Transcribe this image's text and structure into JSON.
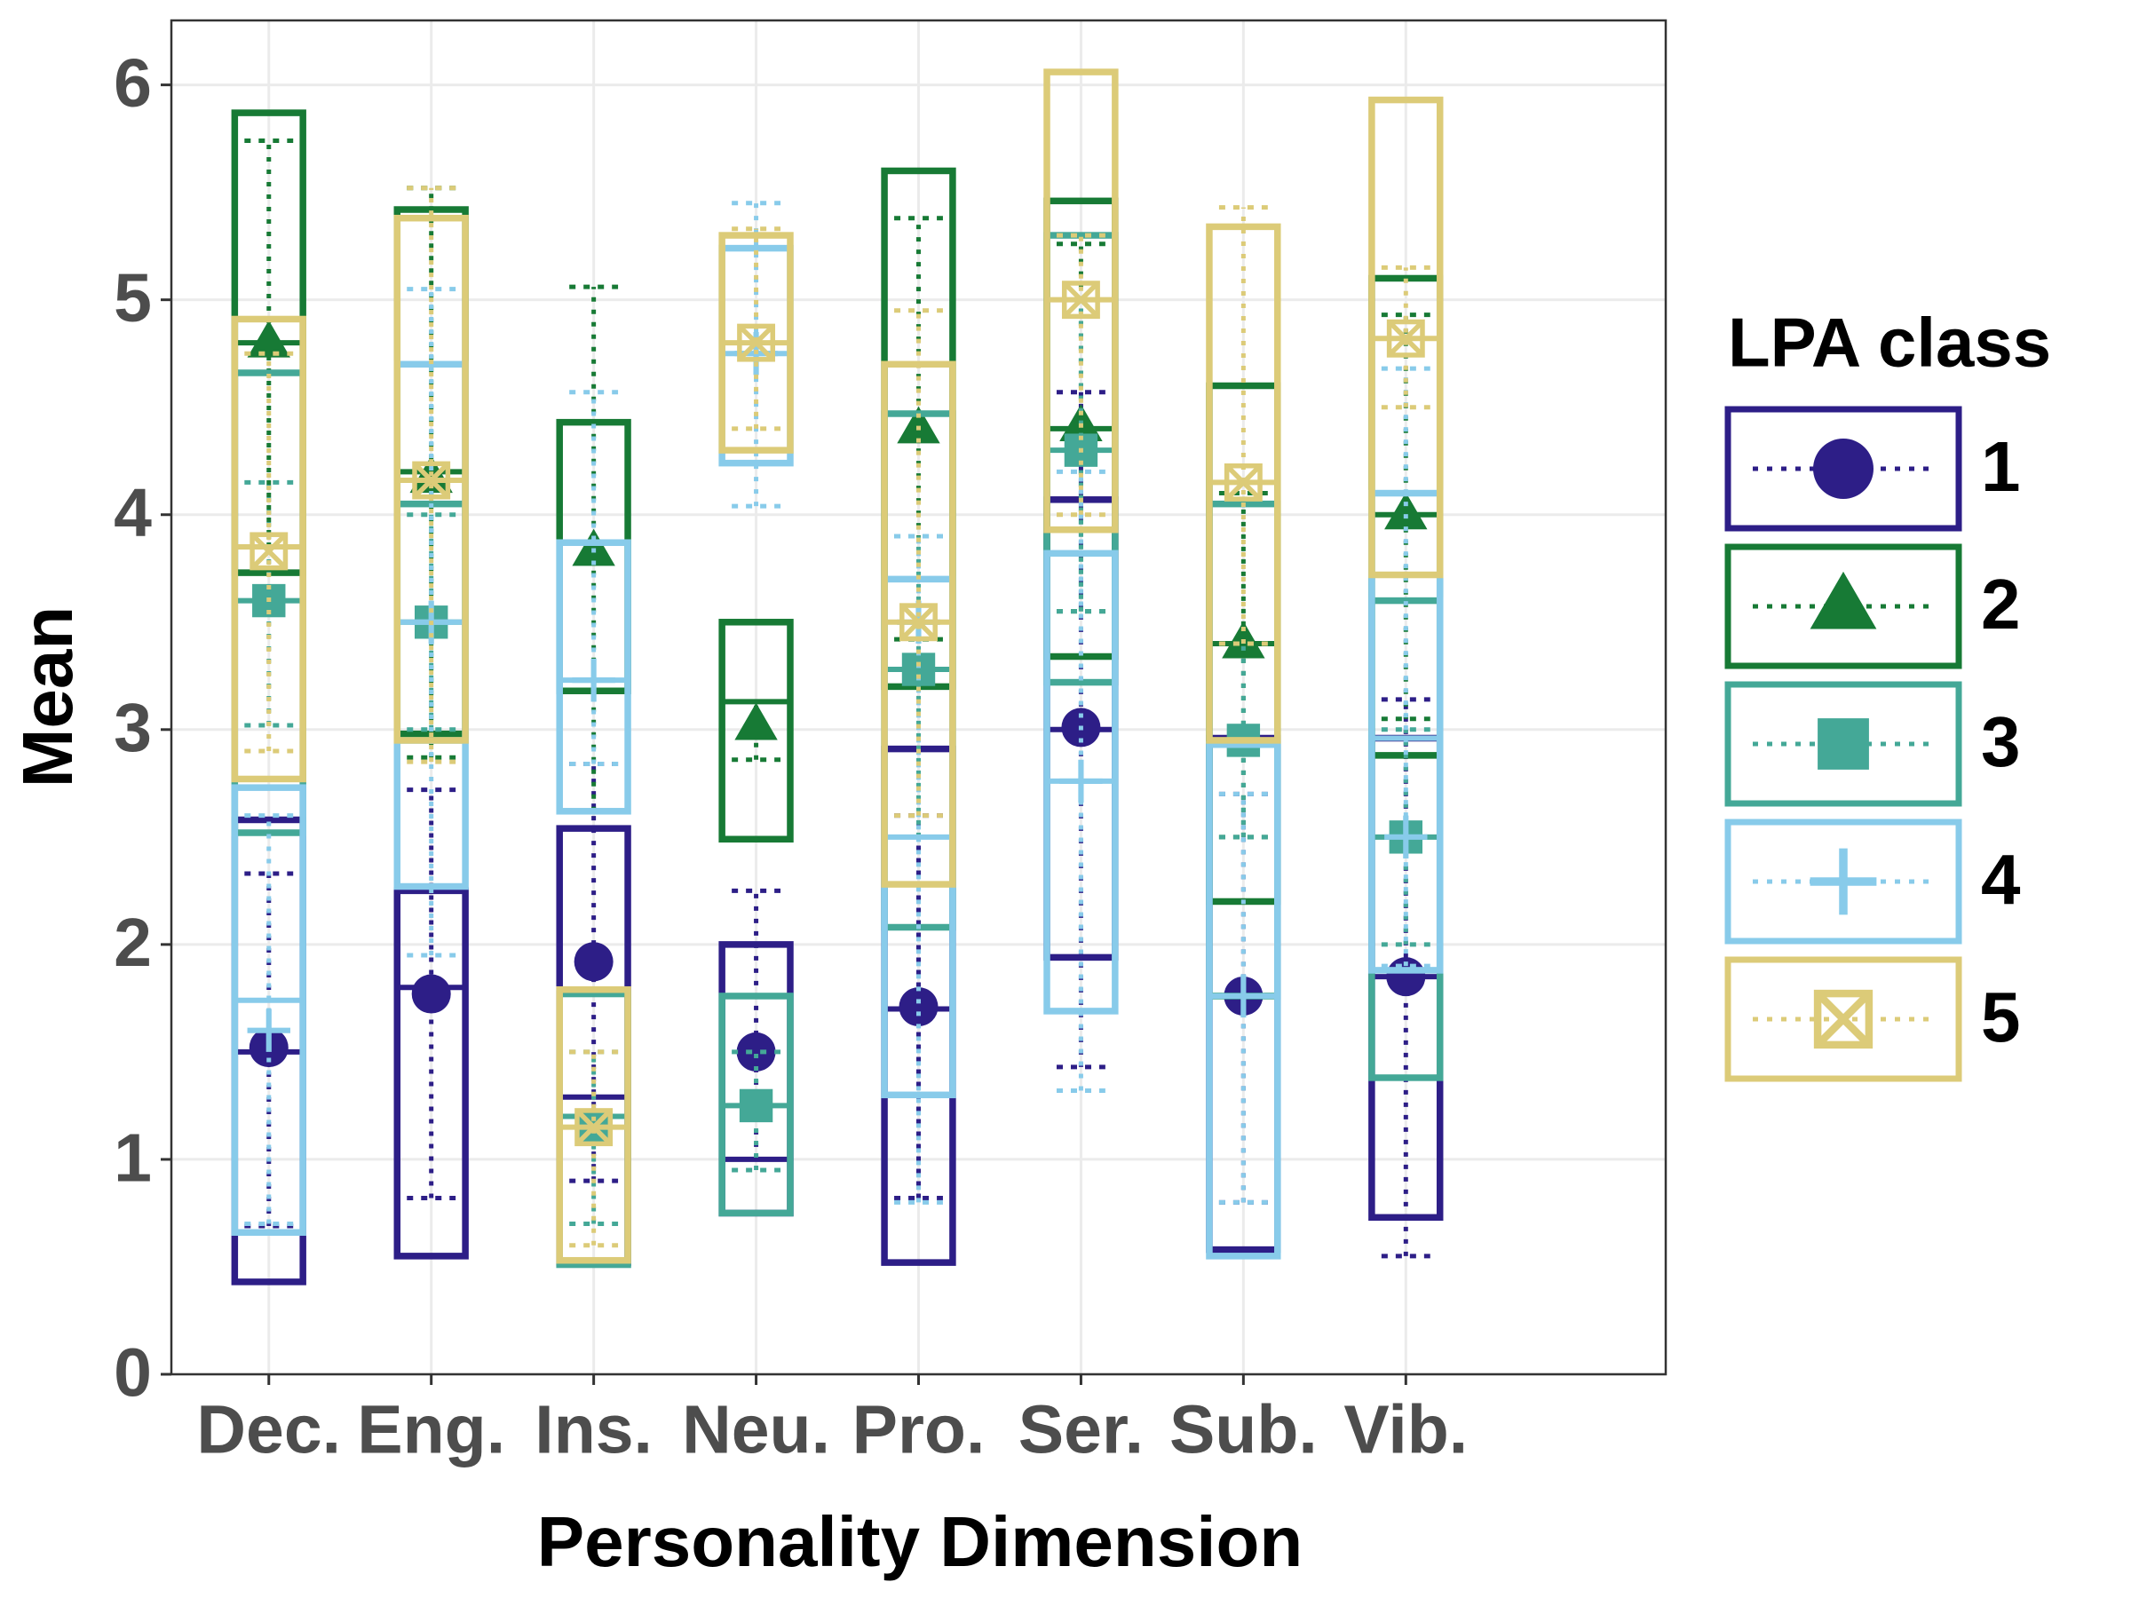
{
  "chart_data": {
    "type": "box",
    "x_label": "Personality Dimension",
    "y_label": "Mean",
    "legend_title": "LPA class",
    "legend_position": "right",
    "grid": true,
    "categories": [
      "Dec.",
      "Eng.",
      "Ins.",
      "Neu.",
      "Pro.",
      "Ser.",
      "Sub.",
      "Vib."
    ],
    "ylim": [
      0,
      6.3
    ],
    "yticks": [
      0,
      1,
      2,
      3,
      4,
      5,
      6
    ],
    "series": [
      {
        "name": "1",
        "color": "#2d1e87",
        "shape": "circle",
        "box_low": [
          0.43,
          0.55,
          0.52,
          0.75,
          0.52,
          1.94,
          0.58,
          0.73
        ],
        "box_high": [
          2.58,
          2.25,
          2.54,
          2.0,
          2.91,
          4.07,
          2.96,
          2.96
        ],
        "median": [
          1.5,
          1.8,
          1.29,
          1.0,
          1.7,
          3.0,
          1.76,
          1.85
        ],
        "mean": [
          1.52,
          1.77,
          1.92,
          1.5,
          1.71,
          3.01,
          1.76,
          1.85
        ],
        "whisker_low": [
          0.69,
          0.82,
          0.9,
          1.0,
          0.82,
          1.43,
          0.8,
          0.55
        ],
        "whisker_high": [
          2.33,
          2.72,
          2.84,
          2.25,
          2.6,
          4.57,
          2.7,
          3.14
        ]
      },
      {
        "name": "2",
        "color": "#177a35",
        "shape": "triangle",
        "box_low": [
          3.73,
          2.98,
          3.18,
          2.49,
          3.2,
          3.34,
          2.2,
          2.88
        ],
        "box_high": [
          5.87,
          5.42,
          4.43,
          3.5,
          5.6,
          5.46,
          4.6,
          5.1
        ],
        "median": [
          4.8,
          4.2,
          3.18,
          3.13,
          4.47,
          4.4,
          3.4,
          4.0
        ],
        "mean": [
          4.8,
          4.17,
          3.83,
          3.02,
          4.4,
          4.41,
          3.4,
          4.0
        ],
        "whisker_low": [
          3.85,
          2.87,
          2.62,
          2.86,
          3.42,
          3.55,
          2.5,
          3.05
        ],
        "whisker_high": [
          5.74,
          5.52,
          5.06,
          3.13,
          5.38,
          5.26,
          4.1,
          4.93
        ]
      },
      {
        "name": "3",
        "color": "#44a897",
        "shape": "square",
        "box_low": [
          2.52,
          2.95,
          0.51,
          0.75,
          2.08,
          3.22,
          1.76,
          1.38
        ],
        "box_high": [
          4.66,
          4.05,
          1.77,
          1.76,
          4.47,
          5.3,
          4.05,
          3.6
        ],
        "median": [
          3.6,
          3.5,
          1.2,
          1.25,
          3.28,
          4.3,
          2.95,
          2.5
        ],
        "mean": [
          3.6,
          3.5,
          1.15,
          1.25,
          3.28,
          4.3,
          2.95,
          2.5
        ],
        "whisker_low": [
          3.02,
          3.0,
          0.7,
          0.95,
          2.5,
          3.55,
          2.5,
          2.0
        ],
        "whisker_high": [
          4.15,
          4.0,
          1.5,
          1.5,
          3.9,
          5.0,
          3.4,
          3.0
        ]
      },
      {
        "name": "4",
        "color": "#88cbea",
        "shape": "plus",
        "box_low": [
          0.66,
          2.27,
          2.62,
          4.24,
          1.3,
          1.69,
          0.55,
          1.88
        ],
        "box_high": [
          2.73,
          4.7,
          3.87,
          5.24,
          3.7,
          3.82,
          2.93,
          4.1
        ],
        "median": [
          1.74,
          3.5,
          3.23,
          4.75,
          2.5,
          2.76,
          1.76,
          2.96
        ],
        "mean": [
          1.6,
          3.5,
          3.23,
          4.75,
          3.5,
          2.76,
          1.76,
          2.5
        ],
        "whisker_low": [
          0.7,
          1.95,
          2.84,
          4.04,
          0.8,
          1.32,
          0.8,
          1.9
        ],
        "whisker_high": [
          2.6,
          5.05,
          4.57,
          5.45,
          3.9,
          4.2,
          2.7,
          4.68
        ]
      },
      {
        "name": "5",
        "color": "#dccb78",
        "shape": "boxx",
        "box_low": [
          2.77,
          2.95,
          0.53,
          4.3,
          2.28,
          3.93,
          2.95,
          3.72
        ],
        "box_high": [
          4.91,
          5.38,
          1.79,
          5.3,
          4.7,
          6.06,
          5.34,
          5.93
        ],
        "median": [
          3.85,
          4.16,
          1.15,
          4.8,
          3.5,
          5.0,
          4.15,
          4.82
        ],
        "mean": [
          3.83,
          4.16,
          1.15,
          4.8,
          3.5,
          5.0,
          4.15,
          4.82
        ],
        "whisker_low": [
          2.9,
          2.85,
          0.6,
          4.4,
          2.6,
          4.0,
          3.4,
          4.5
        ],
        "whisker_high": [
          4.75,
          5.52,
          1.5,
          5.33,
          4.95,
          5.3,
          5.43,
          5.15
        ]
      }
    ]
  }
}
